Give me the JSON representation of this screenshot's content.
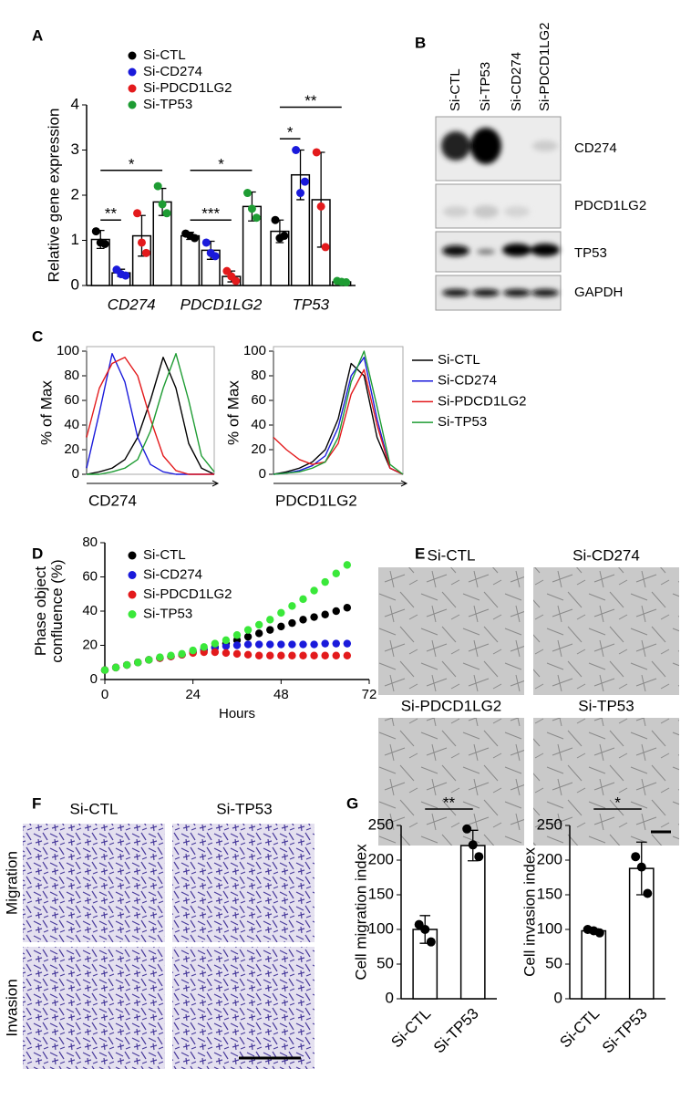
{
  "panel_labels": [
    "A",
    "B",
    "C",
    "D",
    "E",
    "F",
    "G"
  ],
  "blot": {
    "lanes": [
      "Si-CTL",
      "Si-TP53",
      "Si-CD274",
      "Si-PDCD1LG2"
    ],
    "proteins": [
      "CD274",
      "PDCD1LG2",
      "TP53",
      "GAPDH"
    ]
  },
  "images_e": {
    "labels": [
      "Si-CTL",
      "Si-CD274",
      "Si-PDCD1LG2",
      "Si-TP53"
    ]
  },
  "images_f": {
    "columns": [
      "Si-CTL",
      "Si-TP53"
    ],
    "rows": [
      "Migration",
      "Invasion"
    ]
  },
  "chart_data": [
    {
      "type": "bar",
      "ylabel": "Relative gene expression",
      "categories": [
        "CD274",
        "PDCD1LG2",
        "TP53"
      ],
      "category_style": "italic",
      "ylim": [
        0,
        4
      ],
      "yticks": [
        0,
        1,
        2,
        3,
        4
      ],
      "series": [
        {
          "name": "Si-CTL",
          "color": "#000000",
          "values": [
            1.02,
            1.1,
            1.2
          ],
          "errors": [
            0.2,
            0.08,
            0.25
          ],
          "points": [
            [
              1.2,
              0.95,
              0.92
            ],
            [
              1.15,
              1.1,
              1.05
            ],
            [
              1.45,
              1.05,
              1.1
            ]
          ]
        },
        {
          "name": "Si-CD274",
          "color": "#1a1adb",
          "values": [
            0.28,
            0.78,
            2.45
          ],
          "errors": [
            0.08,
            0.2,
            0.55
          ],
          "points": [
            [
              0.35,
              0.25,
              0.22
            ],
            [
              0.95,
              0.72,
              0.65
            ],
            [
              3.0,
              2.05,
              2.3
            ]
          ]
        },
        {
          "name": "Si-PDCD1LG2",
          "color": "#e31a1c",
          "values": [
            1.1,
            0.2,
            1.9
          ],
          "errors": [
            0.45,
            0.12,
            1.05
          ],
          "points": [
            [
              1.6,
              0.95,
              0.72
            ],
            [
              0.32,
              0.2,
              0.1
            ],
            [
              2.95,
              1.75,
              0.85
            ]
          ]
        },
        {
          "name": "Si-TP53",
          "color": "#1e9c33",
          "values": [
            1.85,
            1.75,
            0.08
          ],
          "errors": [
            0.3,
            0.32,
            0.03
          ],
          "points": [
            [
              2.2,
              1.8,
              1.6
            ],
            [
              2.05,
              1.7,
              1.5
            ],
            [
              0.1,
              0.08,
              0.07
            ]
          ]
        }
      ],
      "annotations": [
        "**",
        "*",
        "***",
        "*",
        "*",
        "**"
      ]
    },
    {
      "type": "line",
      "xlabel": "CD274",
      "ylabel": "% of Max",
      "x": [
        0,
        10,
        20,
        30,
        40,
        50,
        60,
        70,
        80,
        90,
        100
      ],
      "xlim": [
        0,
        100
      ],
      "ylim": [
        0,
        100
      ],
      "yticks": [
        0,
        20,
        40,
        60,
        80,
        100
      ],
      "series": [
        {
          "color": "#000000",
          "values": [
            0,
            2,
            5,
            12,
            30,
            60,
            95,
            70,
            25,
            5,
            0
          ]
        },
        {
          "color": "#1a1adb",
          "values": [
            5,
            50,
            98,
            75,
            30,
            8,
            2,
            0,
            0,
            0,
            0
          ]
        },
        {
          "color": "#e31a1c",
          "values": [
            30,
            70,
            90,
            95,
            80,
            45,
            15,
            3,
            0,
            0,
            0
          ]
        },
        {
          "color": "#1e9c33",
          "values": [
            0,
            0,
            2,
            5,
            12,
            35,
            70,
            98,
            60,
            15,
            2
          ]
        }
      ]
    },
    {
      "type": "line",
      "xlabel": "PDCD1LG2",
      "ylabel": "% of Max",
      "x": [
        0,
        10,
        20,
        30,
        40,
        50,
        60,
        70,
        80,
        90,
        100
      ],
      "xlim": [
        0,
        100
      ],
      "ylim": [
        0,
        100
      ],
      "yticks": [
        0,
        20,
        40,
        60,
        80,
        100
      ],
      "series": [
        {
          "name": "Si-CTL",
          "color": "#000000",
          "values": [
            0,
            2,
            5,
            10,
            20,
            45,
            90,
            80,
            30,
            5,
            0
          ]
        },
        {
          "name": "Si-CD274",
          "color": "#1a1adb",
          "values": [
            0,
            1,
            3,
            7,
            15,
            38,
            80,
            95,
            45,
            5,
            0
          ]
        },
        {
          "name": "Si-PDCD1LG2",
          "color": "#e31a1c",
          "values": [
            30,
            20,
            12,
            8,
            10,
            25,
            65,
            85,
            40,
            5,
            0
          ]
        },
        {
          "name": "Si-TP53",
          "color": "#1e9c33",
          "values": [
            0,
            1,
            2,
            5,
            10,
            30,
            75,
            100,
            55,
            8,
            0
          ]
        }
      ]
    },
    {
      "type": "line",
      "markers": true,
      "xlabel": "Hours",
      "ylabel": "Phase object confluence (%)",
      "x": [
        0,
        3,
        6,
        9,
        12,
        15,
        18,
        21,
        24,
        27,
        30,
        33,
        36,
        39,
        42,
        45,
        48,
        51,
        54,
        57,
        60,
        63,
        66
      ],
      "xlim": [
        0,
        72
      ],
      "xticks": [
        0,
        24,
        48,
        72
      ],
      "ylim": [
        0,
        80
      ],
      "yticks": [
        0,
        20,
        40,
        60,
        80
      ],
      "series": [
        {
          "name": "Si-CTL",
          "color": "#000000",
          "values": [
            5.5,
            7,
            8.5,
            10,
            11.5,
            12.5,
            13.5,
            14.5,
            16,
            17.5,
            19,
            21,
            23,
            25,
            27,
            29,
            31,
            33,
            35,
            36.5,
            38,
            40,
            42
          ]
        },
        {
          "name": "Si-CD274",
          "color": "#1a1adb",
          "values": [
            5.5,
            7,
            8.5,
            10,
            11.5,
            12.5,
            13.5,
            14.5,
            16,
            17.5,
            18.5,
            19.5,
            20,
            20.5,
            20.5,
            20.5,
            20.5,
            20.5,
            20.5,
            20.5,
            21,
            21,
            21
          ]
        },
        {
          "name": "Si-PDCD1LG2",
          "color": "#e31a1c",
          "values": [
            5.5,
            7,
            8.5,
            10,
            11.5,
            12.5,
            13.5,
            14.5,
            15.5,
            16,
            16,
            15.5,
            15,
            14.5,
            14,
            14,
            14,
            14,
            14,
            14,
            14,
            14,
            14
          ]
        },
        {
          "name": "Si-TP53",
          "color": "#3ae83a",
          "values": [
            5.5,
            7,
            8.5,
            10,
            11.5,
            13,
            14,
            15,
            17,
            19,
            21,
            23,
            26,
            29,
            32,
            35,
            39,
            43,
            47,
            52,
            57,
            62,
            67
          ]
        }
      ]
    },
    {
      "type": "bar",
      "ylabel": "Cell migration index",
      "categories": [
        "Si-CTL",
        "Si-TP53"
      ],
      "category_style": "rotated",
      "ylim": [
        0,
        250
      ],
      "yticks": [
        0,
        50,
        100,
        150,
        200,
        250
      ],
      "series": [
        {
          "color": "#000000",
          "values": [
            100,
            221
          ],
          "errors": [
            20,
            22
          ],
          "points": [
            [
              107,
              100,
              82
            ],
            [
              245,
              222,
              205
            ]
          ]
        }
      ],
      "annotations": [
        "**"
      ]
    },
    {
      "type": "bar",
      "ylabel": "Cell invasion index",
      "categories": [
        "Si-CTL",
        "Si-TP53"
      ],
      "category_style": "rotated",
      "ylim": [
        0,
        250
      ],
      "yticks": [
        0,
        50,
        100,
        150,
        200,
        250
      ],
      "series": [
        {
          "color": "#000000",
          "values": [
            98,
            188
          ],
          "errors": [
            3,
            38
          ],
          "points": [
            [
              100,
              98,
              95
            ],
            [
              205,
              190,
              152
            ]
          ]
        }
      ],
      "annotations": [
        "*"
      ]
    }
  ]
}
